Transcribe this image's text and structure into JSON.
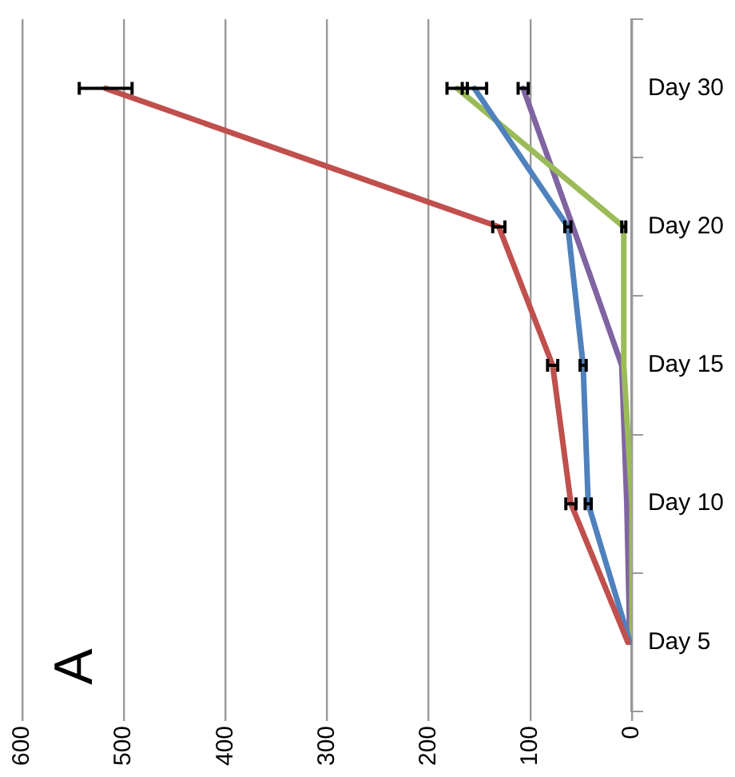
{
  "chart_data": {
    "type": "line",
    "orientation": "horizontal",
    "categories": [
      "Day 30",
      "Day 20",
      "Day 15",
      "Day 10",
      "Day 5"
    ],
    "series": [
      {
        "color": "#c0504d",
        "values": [
          518,
          131,
          78,
          60,
          4
        ],
        "errors": [
          26,
          6,
          5,
          5,
          null
        ]
      },
      {
        "color": "#4f81bd",
        "values": [
          155,
          63,
          48,
          43,
          2
        ],
        "errors": [
          12,
          3,
          3,
          3,
          null
        ]
      },
      {
        "color": "#9bbb59",
        "values": [
          172,
          8,
          8,
          0,
          0
        ],
        "errors": [
          10,
          2,
          null,
          null,
          null
        ]
      },
      {
        "color": "#8064a2",
        "values": [
          107,
          58,
          10,
          5,
          2
        ],
        "errors": [
          5,
          null,
          null,
          null,
          null
        ]
      }
    ],
    "xlim": [
      600,
      0
    ],
    "xticks": [
      600,
      500,
      400,
      300,
      200,
      100,
      0
    ],
    "grid": "x",
    "legend": false,
    "line_style": "solid",
    "annotations": [
      "A"
    ]
  }
}
